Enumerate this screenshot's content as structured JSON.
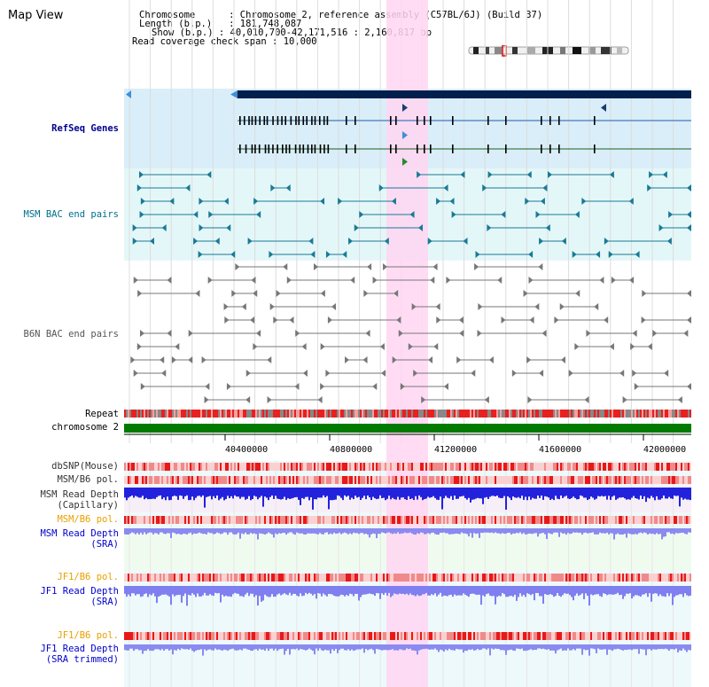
{
  "view_title": "Map View",
  "info": {
    "chromosome_key": "Chromosome",
    "chromosome_val": "Chromosome 2, reference assembly (C57BL/6J) (Build 37)",
    "length_key": "Length (b.p.)",
    "length_val": "181,748,087",
    "show_key": "Show (b.p.)",
    "show_val": "40,010,700-42,171,516 : 2,160,817 bp",
    "coverage_key": "Read coverage check span",
    "coverage_val": "10,000"
  },
  "tracks": {
    "refseq": "RefSeq Genes",
    "msm_bac": "MSM BAC end pairs",
    "b6n_bac": "B6N BAC end pairs",
    "repeat": "Repeat",
    "chromosome": "chromosome 2",
    "dbsnp": "dbSNP(Mouse)",
    "msm_b6_pol_1": "MSM/B6 pol.",
    "msm_depth_cap_1": "MSM Read Depth",
    "msm_depth_cap_2": "(Capillary)",
    "msm_b6_pol_2": "MSM/B6 pol.",
    "msm_depth_sra_1": "MSM Read Depth",
    "msm_depth_sra_2": "(SRA)",
    "jf1_b6_pol_1": "JF1/B6 pol.",
    "jf1_depth_sra_1": "JF1 Read Depth",
    "jf1_depth_sra_2": "(SRA)",
    "jf1_b6_pol_2": "JF1/B6 pol.",
    "jf1_depth_trim_1": "JF1 Read Depth",
    "jf1_depth_trim_2": "(SRA trimmed)"
  },
  "axis": {
    "ticks": [
      "40400000",
      "40800000",
      "41200000",
      "41600000",
      "42000000"
    ]
  },
  "colors": {
    "refseq_label": "#00008b",
    "msm_label": "#006e8c",
    "b6n_label": "#555555",
    "orange_label": "#e8a000",
    "blue_label": "#0000cc",
    "highlight": "#ffd6f2",
    "chromosome_bar": "#007a00",
    "gene": "#001f4d"
  }
}
